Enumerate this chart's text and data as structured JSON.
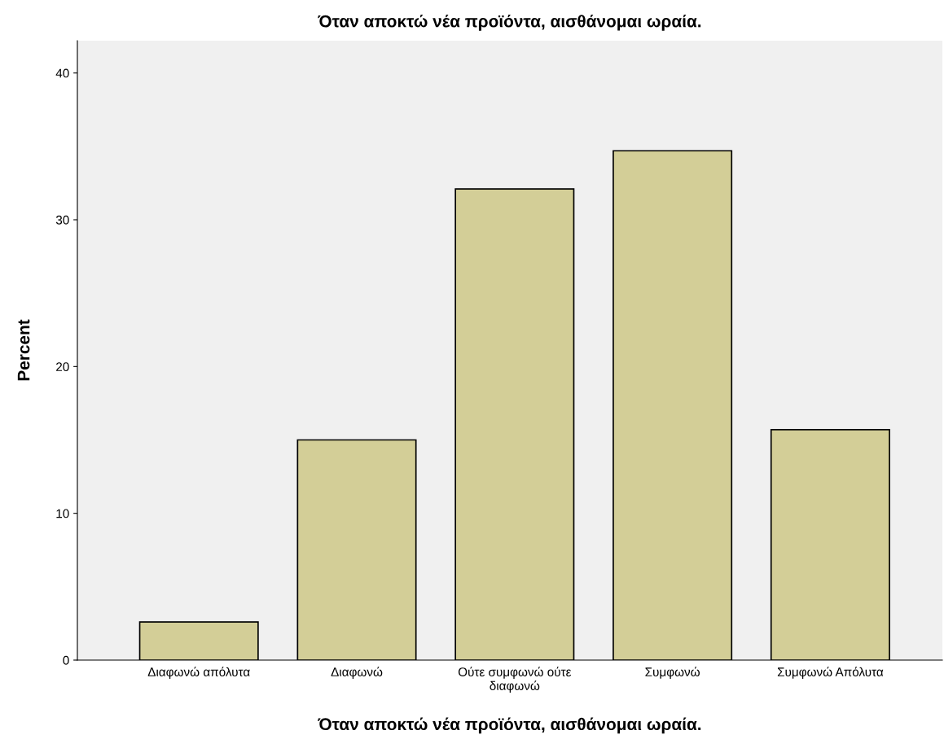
{
  "chart_data": {
    "type": "bar",
    "title": "Όταν αποκτώ νέα προϊόντα, αισθάνομαι ωραία.",
    "xlabel": "Όταν αποκτώ νέα προϊόντα, αισθάνομαι ωραία.",
    "ylabel": "Percent",
    "categories": [
      "Διαφωνώ απόλυτα",
      "Διαφωνώ",
      "Ούτε συμφωνώ ούτε\nδιαφωνώ",
      "Συμφωνώ",
      "Συμφωνώ Απόλυτα"
    ],
    "values": [
      2.6,
      15.0,
      32.1,
      34.7,
      15.7
    ],
    "color": "#d3ce97",
    "ylim": [
      0,
      42.2
    ],
    "yticks": [
      0,
      10,
      20,
      30,
      40
    ],
    "grid": false
  }
}
